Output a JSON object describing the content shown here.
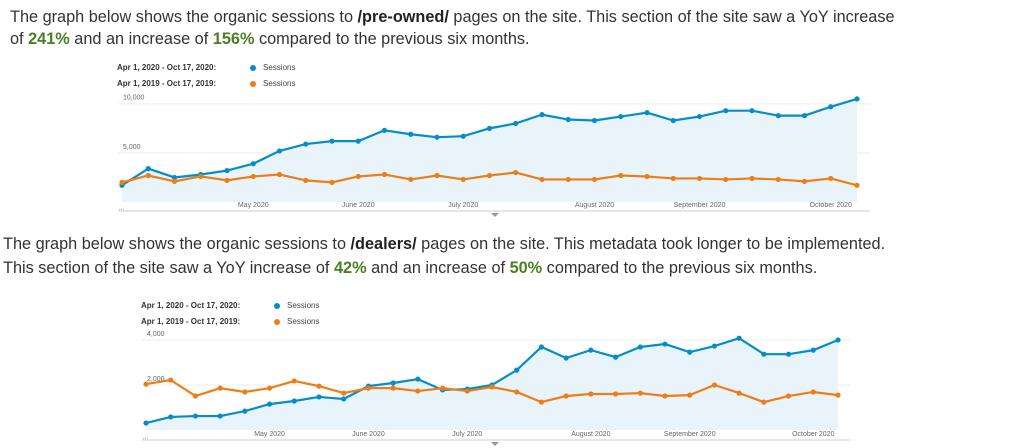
{
  "paragraphs": [
    {
      "lines": [
        [
          {
            "text": "The graph below shows the organic sessions to "
          },
          {
            "text": "/pre-owned/",
            "emphasis": "bold"
          },
          {
            "text": " pages on the site. This section of the site saw a YoY increase"
          }
        ],
        [
          {
            "text": "of "
          },
          {
            "text": "241%",
            "emphasis": "green"
          },
          {
            "text": " and an increase of "
          },
          {
            "text": "156%",
            "emphasis": "green"
          },
          {
            "text": " compared to the previous six months."
          }
        ]
      ]
    },
    {
      "lines": [
        [
          {
            "text": "The graph below shows the organic sessions to "
          },
          {
            "text": "/dealers/",
            "emphasis": "bold"
          },
          {
            "text": " pages on the site. This metadata took longer to be implemented."
          }
        ],
        [
          {
            "text": "This section of the site saw a YoY increase of "
          },
          {
            "text": "42%",
            "emphasis": "green"
          },
          {
            "text": " and an increase of "
          },
          {
            "text": "50%",
            "emphasis": "green"
          },
          {
            "text": " compared to the previous six months."
          }
        ]
      ]
    }
  ],
  "chart_data": [
    {
      "type": "line",
      "categories": [
        null,
        null,
        null,
        null,
        null,
        "May 2020",
        null,
        null,
        null,
        "June 2020",
        null,
        null,
        null,
        "July 2020",
        null,
        null,
        null,
        null,
        "August 2020",
        null,
        null,
        null,
        "September 2020",
        null,
        null,
        null,
        null,
        "October 2020",
        null
      ],
      "series": [
        {
          "name": "Sessions",
          "period": "Apr 1, 2020 - Oct 17, 2020:",
          "color": "#058dc7",
          "area": true,
          "values": [
            1700,
            3400,
            2500,
            2800,
            3200,
            3900,
            5200,
            5900,
            6200,
            6200,
            7300,
            6900,
            6600,
            6700,
            7500,
            8000,
            8900,
            8400,
            8300,
            8700,
            9100,
            8300,
            8700,
            9300,
            9300,
            8800,
            8800,
            9700,
            10500
          ]
        },
        {
          "name": "Sessions",
          "period": "Apr 1, 2019 - Oct 17, 2019:",
          "color": "#ed7e17",
          "values": [
            2000,
            2700,
            2100,
            2600,
            2200,
            2600,
            2800,
            2200,
            2000,
            2600,
            2800,
            2300,
            2700,
            2300,
            2700,
            3000,
            2300,
            2300,
            2300,
            2700,
            2600,
            2400,
            2400,
            2300,
            2400,
            2300,
            2100,
            2400,
            1700
          ]
        }
      ],
      "ylim": [
        0,
        11000
      ],
      "yticks": [
        {
          "value": 5000,
          "label": "5,000"
        },
        {
          "value": 10000,
          "label": "10,000"
        }
      ],
      "grid": true
    },
    {
      "type": "line",
      "categories": [
        null,
        null,
        null,
        null,
        null,
        "May 2020",
        null,
        null,
        null,
        "June 2020",
        null,
        null,
        null,
        "July 2020",
        null,
        null,
        null,
        null,
        "August 2020",
        null,
        null,
        null,
        "September 2020",
        null,
        null,
        null,
        null,
        "October 2020",
        null
      ],
      "series": [
        {
          "name": "Sessions",
          "period": "Apr 1, 2020 - Oct 17, 2020:",
          "color": "#058dc7",
          "area": true,
          "values": [
            310,
            580,
            620,
            620,
            840,
            1150,
            1290,
            1470,
            1380,
            1950,
            2090,
            2260,
            1780,
            1820,
            2000,
            2660,
            3690,
            3200,
            3550,
            3240,
            3690,
            3820,
            3460,
            3730,
            4080,
            3370,
            3370,
            3550,
            4000
          ]
        },
        {
          "name": "Sessions",
          "period": "Apr 1, 2019 - Oct 17, 2019:",
          "color": "#ed7e17",
          "values": [
            2040,
            2220,
            1510,
            1860,
            1690,
            1860,
            2180,
            1950,
            1640,
            1860,
            1860,
            1730,
            1860,
            1730,
            1910,
            1690,
            1240,
            1510,
            1600,
            1600,
            1640,
            1510,
            1550,
            2000,
            1640,
            1240,
            1510,
            1690,
            1550
          ]
        }
      ],
      "ylim": [
        0,
        4400
      ],
      "yticks": [
        {
          "value": 2000,
          "label": "2,000"
        },
        {
          "value": 4000,
          "label": "4,000"
        }
      ],
      "grid": true
    }
  ]
}
